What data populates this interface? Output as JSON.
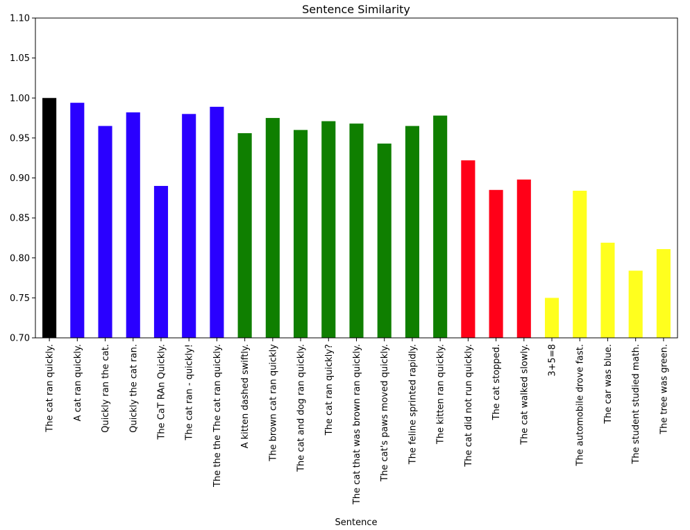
{
  "chart_data": {
    "type": "bar",
    "title": "Sentence Similarity",
    "xlabel": "Sentence",
    "ylabel": "",
    "ylim": [
      0.7,
      1.1
    ],
    "yticks": [
      "0.70",
      "0.75",
      "0.80",
      "0.85",
      "0.90",
      "0.95",
      "1.00",
      "1.05",
      "1.10"
    ],
    "grid": false,
    "legend": "none",
    "categories": [
      "The cat ran quickly.",
      "A cat ran quickly.",
      "Quickly ran the cat.",
      "Quickly the cat ran.",
      "The CaT RAn Quickly.",
      "The cat ran - quickly!",
      "The the the The cat ran quickly.",
      "A kitten dashed swiftly.",
      "The brown cat ran quickly",
      "The cat and dog ran quickly.",
      "The cat ran quickly?",
      "The cat that was brown ran quickly.",
      "The cat's paws moved quickly.",
      "The feline sprinted rapidly.",
      "The kitten ran quickly.",
      "The cat did not run quickly.",
      "The cat stopped.",
      "The cat walked slowly.",
      "3+5=8",
      "The automobile drove fast.",
      "The car was blue.",
      "The student studied math.",
      "The tree was green."
    ],
    "values": [
      1.0,
      0.994,
      0.965,
      0.982,
      0.89,
      0.98,
      0.989,
      0.956,
      0.975,
      0.96,
      0.971,
      0.968,
      0.943,
      0.965,
      0.978,
      0.922,
      0.885,
      0.898,
      0.75,
      0.884,
      0.819,
      0.784,
      0.811
    ],
    "colors": [
      "#000000",
      "#2a00ff",
      "#2a00ff",
      "#2a00ff",
      "#2a00ff",
      "#2a00ff",
      "#2a00ff",
      "#0f7f00",
      "#0f7f00",
      "#0f7f00",
      "#0f7f00",
      "#0f7f00",
      "#0f7f00",
      "#0f7f00",
      "#0f7f00",
      "#ff0018",
      "#ff0018",
      "#ff0018",
      "#ffff1e",
      "#ffff1e",
      "#ffff1e",
      "#ffff1e",
      "#ffff1e"
    ]
  }
}
